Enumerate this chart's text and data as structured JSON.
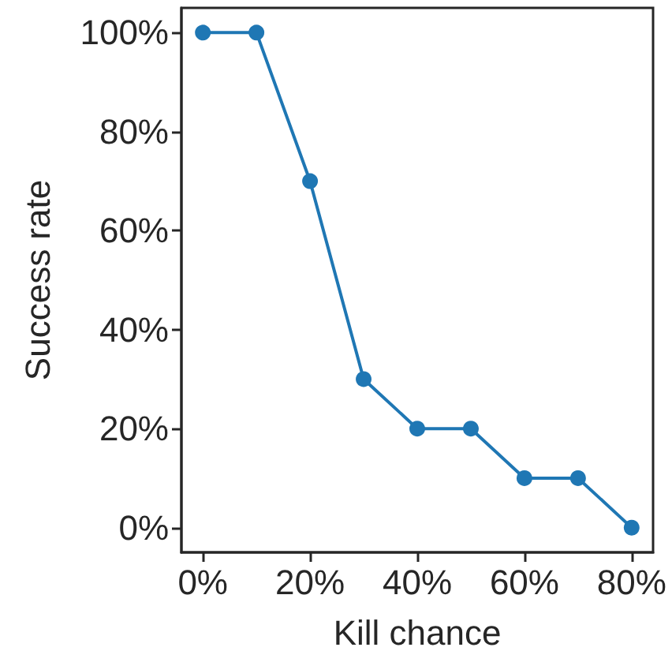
{
  "chart_data": {
    "type": "line",
    "xlabel": "Kill chance",
    "ylabel": "Success rate",
    "x": [
      0,
      10,
      20,
      30,
      40,
      50,
      60,
      70,
      80
    ],
    "series": [
      {
        "color": "#1f77b4",
        "values": [
          100,
          100,
          70,
          30,
          20,
          20,
          10,
          10,
          0
        ]
      }
    ],
    "xlim": [
      -4,
      84
    ],
    "ylim": [
      -5,
      105
    ],
    "xticks": [
      {
        "value": 0,
        "label": "0%"
      },
      {
        "value": 20,
        "label": "20%"
      },
      {
        "value": 40,
        "label": "40%"
      },
      {
        "value": 60,
        "label": "60%"
      },
      {
        "value": 80,
        "label": "80%"
      }
    ],
    "yticks": [
      {
        "value": 0,
        "label": "0%"
      },
      {
        "value": 20,
        "label": "20%"
      },
      {
        "value": 40,
        "label": "40%"
      },
      {
        "value": 60,
        "label": "60%"
      },
      {
        "value": 80,
        "label": "80%"
      },
      {
        "value": 100,
        "label": "100%"
      }
    ],
    "grid": false,
    "legend": false,
    "marker": "circle",
    "line_style": "solid"
  }
}
